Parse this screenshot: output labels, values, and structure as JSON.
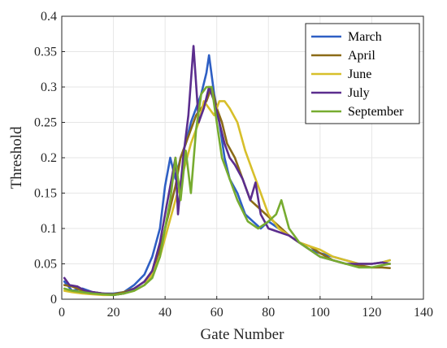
{
  "chart_data": {
    "type": "line",
    "title": "",
    "xlabel": "Gate Number",
    "ylabel": "Threshold",
    "xlim": [
      0,
      140
    ],
    "ylim": [
      0,
      0.4
    ],
    "xticks": [
      "0",
      "20",
      "40",
      "60",
      "80",
      "100",
      "120",
      "140"
    ],
    "yticks": [
      "0",
      "0.05",
      "0.1",
      "0.15",
      "0.2",
      "0.25",
      "0.3",
      "0.35",
      "0.4"
    ],
    "grid": true,
    "legend_position": "top-right",
    "series": [
      {
        "name": "March",
        "color": "#2e5fc4",
        "x": [
          1,
          4,
          8,
          12,
          16,
          20,
          24,
          28,
          32,
          35,
          38,
          40,
          42,
          44,
          46,
          48,
          50,
          52,
          54,
          56,
          57,
          59,
          61,
          63,
          65,
          68,
          71,
          74,
          77,
          80,
          84,
          88,
          92,
          96,
          100,
          105,
          110,
          115,
          120,
          124,
          127
        ],
        "y": [
          0.025,
          0.012,
          0.015,
          0.01,
          0.008,
          0.008,
          0.01,
          0.02,
          0.035,
          0.06,
          0.1,
          0.16,
          0.2,
          0.17,
          0.2,
          0.22,
          0.25,
          0.27,
          0.29,
          0.32,
          0.345,
          0.29,
          0.25,
          0.2,
          0.17,
          0.15,
          0.12,
          0.11,
          0.1,
          0.11,
          0.1,
          0.09,
          0.08,
          0.07,
          0.065,
          0.06,
          0.055,
          0.05,
          0.05,
          0.052,
          0.055
        ]
      },
      {
        "name": "April",
        "color": "#8b6b17",
        "x": [
          1,
          4,
          8,
          12,
          16,
          20,
          24,
          28,
          32,
          35,
          38,
          40,
          42,
          44,
          46,
          48,
          50,
          52,
          54,
          56,
          58,
          60,
          62,
          64,
          67,
          70,
          73,
          76,
          79,
          82,
          85,
          88,
          92,
          96,
          100,
          105,
          110,
          115,
          120,
          124,
          127
        ],
        "y": [
          0.02,
          0.018,
          0.012,
          0.01,
          0.008,
          0.007,
          0.01,
          0.015,
          0.025,
          0.04,
          0.07,
          0.1,
          0.13,
          0.16,
          0.2,
          0.22,
          0.24,
          0.26,
          0.27,
          0.28,
          0.3,
          0.27,
          0.25,
          0.22,
          0.2,
          0.17,
          0.14,
          0.13,
          0.12,
          0.11,
          0.1,
          0.09,
          0.08,
          0.075,
          0.065,
          0.055,
          0.05,
          0.048,
          0.045,
          0.045,
          0.044
        ]
      },
      {
        "name": "June",
        "color": "#d7bf2a",
        "x": [
          1,
          4,
          8,
          12,
          16,
          20,
          24,
          28,
          32,
          35,
          38,
          41,
          44,
          47,
          50,
          53,
          55,
          57,
          59,
          61,
          63,
          65,
          68,
          71,
          74,
          77,
          80,
          84,
          88,
          92,
          96,
          100,
          105,
          110,
          115,
          120,
          124,
          127
        ],
        "y": [
          0.012,
          0.01,
          0.008,
          0.007,
          0.006,
          0.006,
          0.008,
          0.012,
          0.02,
          0.035,
          0.06,
          0.1,
          0.14,
          0.18,
          0.22,
          0.25,
          0.28,
          0.27,
          0.26,
          0.28,
          0.28,
          0.27,
          0.25,
          0.21,
          0.18,
          0.15,
          0.12,
          0.1,
          0.09,
          0.08,
          0.075,
          0.07,
          0.06,
          0.055,
          0.05,
          0.05,
          0.052,
          0.055
        ]
      },
      {
        "name": "July",
        "color": "#5b2d8e",
        "x": [
          1,
          3,
          6,
          9,
          12,
          16,
          20,
          24,
          28,
          32,
          35,
          38,
          40,
          42,
          44,
          45,
          47,
          49,
          51,
          53,
          55,
          57,
          59,
          61,
          63,
          65,
          67,
          70,
          73,
          75,
          77,
          80,
          84,
          88,
          92,
          96,
          100,
          105,
          110,
          115,
          120,
          124,
          127
        ],
        "y": [
          0.03,
          0.02,
          0.018,
          0.012,
          0.01,
          0.008,
          0.006,
          0.008,
          0.015,
          0.025,
          0.04,
          0.08,
          0.12,
          0.16,
          0.2,
          0.12,
          0.2,
          0.26,
          0.358,
          0.25,
          0.27,
          0.3,
          0.28,
          0.25,
          0.22,
          0.2,
          0.19,
          0.17,
          0.14,
          0.165,
          0.12,
          0.1,
          0.095,
          0.09,
          0.08,
          0.07,
          0.06,
          0.055,
          0.05,
          0.05,
          0.05,
          0.052,
          0.05
        ]
      },
      {
        "name": "September",
        "color": "#77ac30",
        "x": [
          1,
          4,
          8,
          12,
          16,
          20,
          24,
          28,
          32,
          35,
          38,
          40,
          42,
          44,
          46,
          48,
          50,
          52,
          54,
          56,
          58,
          60,
          62,
          65,
          68,
          72,
          76,
          80,
          83,
          85,
          88,
          92,
          96,
          100,
          105,
          110,
          115,
          120,
          124,
          127
        ],
        "y": [
          0.015,
          0.012,
          0.01,
          0.008,
          0.007,
          0.006,
          0.008,
          0.012,
          0.02,
          0.03,
          0.06,
          0.1,
          0.14,
          0.2,
          0.14,
          0.21,
          0.15,
          0.24,
          0.29,
          0.3,
          0.3,
          0.25,
          0.2,
          0.17,
          0.14,
          0.11,
          0.1,
          0.11,
          0.12,
          0.14,
          0.1,
          0.08,
          0.07,
          0.06,
          0.055,
          0.05,
          0.045,
          0.045,
          0.048,
          0.05
        ]
      }
    ]
  }
}
